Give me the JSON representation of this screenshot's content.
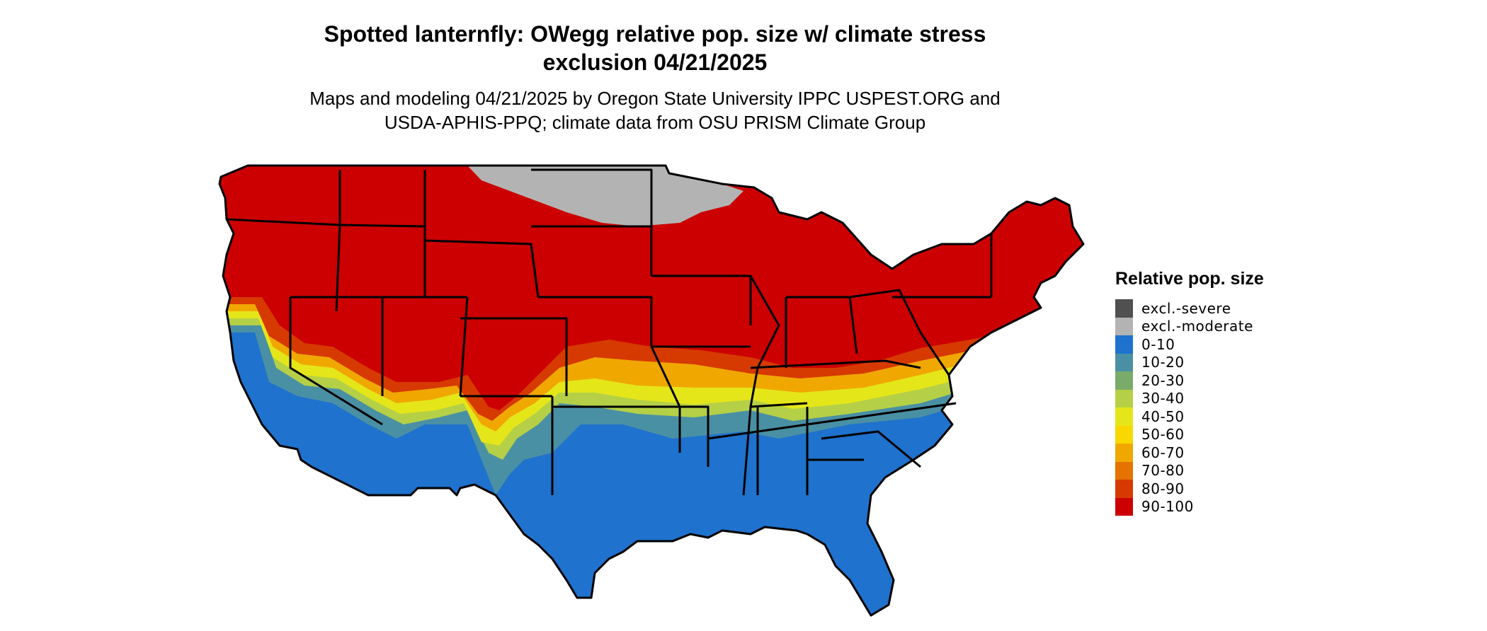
{
  "title": "Spotted lanternfly: OWegg relative pop. size w/ climate stress exclusion 04/21/2025",
  "title_lines": [
    "Spotted lanternfly: OWegg relative pop. size w/ climate stress",
    "exclusion 04/21/2025"
  ],
  "subtitle_lines": [
    "Maps and modeling 04/21/2025 by Oregon State University IPPC USPEST.ORG and",
    "USDA-APHIS-PPQ; climate data from OSU PRISM Climate Group"
  ],
  "legend": {
    "title": "Relative pop. size",
    "items": [
      {
        "label": "excl.-severe",
        "color": "#505050"
      },
      {
        "label": "excl.-moderate",
        "color": "#b3b3b3"
      },
      {
        "label": "0-10",
        "color": "#1f72cd"
      },
      {
        "label": "10-20",
        "color": "#4a90a4"
      },
      {
        "label": "20-30",
        "color": "#7aab6a"
      },
      {
        "label": "30-40",
        "color": "#b5d046"
      },
      {
        "label": "40-50",
        "color": "#e5e619"
      },
      {
        "label": "50-60",
        "color": "#f8d800"
      },
      {
        "label": "60-70",
        "color": "#f0a800"
      },
      {
        "label": "70-80",
        "color": "#e47300"
      },
      {
        "label": "80-90",
        "color": "#d63a00"
      },
      {
        "label": "90-100",
        "color": "#cc0000"
      }
    ]
  }
}
